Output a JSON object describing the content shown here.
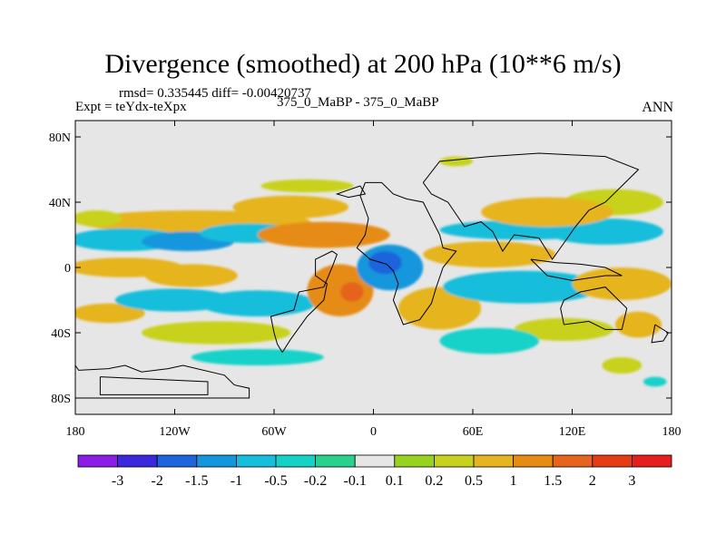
{
  "header": {
    "title": "Divergence (smoothed) at 200 hPa (10**6 m/s)",
    "stats": "rmsd= 0.335445  diff= -0.00420737",
    "expt": "Expt = teYdx-teXpx",
    "comparison": "375_0_MaBP - 375_0_MaBP",
    "period": "ANN"
  },
  "chart_data": {
    "type": "heatmap",
    "title": "Divergence (smoothed) at 200 hPa (10**6 m/s)",
    "projection": "cylindrical equidistant",
    "xlim": [
      -180,
      180
    ],
    "ylim": [
      -90,
      90
    ],
    "x_ticks": [
      {
        "value": -180,
        "label": "180"
      },
      {
        "value": -120,
        "label": "120W"
      },
      {
        "value": -60,
        "label": "60W"
      },
      {
        "value": 0,
        "label": "0"
      },
      {
        "value": 60,
        "label": "60E"
      },
      {
        "value": 120,
        "label": "120E"
      },
      {
        "value": 180,
        "label": "180"
      }
    ],
    "y_ticks": [
      {
        "value": 80,
        "label": "80N"
      },
      {
        "value": 40,
        "label": "40N"
      },
      {
        "value": 0,
        "label": "0"
      },
      {
        "value": -40,
        "label": "40S"
      },
      {
        "value": -80,
        "label": "80S"
      }
    ],
    "colorbar": {
      "labels": [
        "-3",
        "-2",
        "-1.5",
        "-1",
        "-0.5",
        "-0.2",
        "-0.1",
        "0.1",
        "0.2",
        "0.5",
        "1",
        "1.5",
        "2",
        "3"
      ],
      "colors": [
        "#8a1ee6",
        "#3c28dc",
        "#1e64dc",
        "#1496dc",
        "#14bedc",
        "#14d2c8",
        "#28d28c",
        "#e6e6e6",
        "#96d21e",
        "#c8d21e",
        "#e6b41e",
        "#e68c14",
        "#e6641e",
        "#e63c14",
        "#e61e1e"
      ]
    },
    "background_color": "#e6e6e6",
    "regions": [
      {
        "lon": -108,
        "lat": 28,
        "rlon": 70,
        "rlat": 7,
        "level": "0.5"
      },
      {
        "lon": -167,
        "lat": 30,
        "rlon": 15,
        "rlat": 5,
        "level": "0.2"
      },
      {
        "lon": -50,
        "lat": 37,
        "rlon": 35,
        "rlat": 7,
        "level": "0.5"
      },
      {
        "lon": -40,
        "lat": 50,
        "rlon": 28,
        "rlat": 4,
        "level": "0.2"
      },
      {
        "lon": -150,
        "lat": 17,
        "rlon": 34,
        "rlat": 7,
        "level": "-0.5"
      },
      {
        "lon": -112,
        "lat": 16,
        "rlon": 28,
        "rlat": 6,
        "level": "-1"
      },
      {
        "lon": -75,
        "lat": 21,
        "rlon": 30,
        "rlat": 6,
        "level": "-0.5"
      },
      {
        "lon": -30,
        "lat": 20,
        "rlon": 40,
        "rlat": 8,
        "level": "1"
      },
      {
        "lon": -150,
        "lat": 0,
        "rlon": 35,
        "rlat": 6,
        "level": "0.5"
      },
      {
        "lon": -110,
        "lat": -5,
        "rlon": 28,
        "rlat": 7,
        "level": "0.5"
      },
      {
        "lon": -160,
        "lat": -28,
        "rlon": 22,
        "rlat": 6,
        "level": "0.5"
      },
      {
        "lon": -120,
        "lat": -20,
        "rlon": 36,
        "rlat": 7,
        "level": "-0.5"
      },
      {
        "lon": -70,
        "lat": -22,
        "rlon": 35,
        "rlat": 8,
        "level": "-0.5"
      },
      {
        "lon": -95,
        "lat": -40,
        "rlon": 45,
        "rlat": 7,
        "level": "0.2"
      },
      {
        "lon": -70,
        "lat": -55,
        "rlon": 40,
        "rlat": 5,
        "level": "-0.2"
      },
      {
        "lon": -20,
        "lat": -14,
        "rlon": 20,
        "rlat": 16,
        "level": "1"
      },
      {
        "lon": -13,
        "lat": -15,
        "rlon": 7,
        "rlat": 6,
        "level": "1.5"
      },
      {
        "lon": 10,
        "lat": 0,
        "rlon": 20,
        "rlat": 14,
        "level": "-1"
      },
      {
        "lon": 7,
        "lat": 3,
        "rlon": 10,
        "rlat": 7,
        "level": "-1.5"
      },
      {
        "lon": 40,
        "lat": -25,
        "rlon": 25,
        "rlat": 13,
        "level": "0.5"
      },
      {
        "lon": 70,
        "lat": 8,
        "rlon": 40,
        "rlat": 8,
        "level": "0.5"
      },
      {
        "lon": 90,
        "lat": 23,
        "rlon": 50,
        "rlat": 6,
        "level": "-0.5"
      },
      {
        "lon": 140,
        "lat": 22,
        "rlon": 35,
        "rlat": 8,
        "level": "-0.5"
      },
      {
        "lon": 145,
        "lat": 40,
        "rlon": 30,
        "rlat": 8,
        "level": "0.2"
      },
      {
        "lon": 105,
        "lat": 34,
        "rlon": 40,
        "rlat": 9,
        "level": "0.5"
      },
      {
        "lon": 90,
        "lat": -12,
        "rlon": 48,
        "rlat": 10,
        "level": "-0.5"
      },
      {
        "lon": 150,
        "lat": -10,
        "rlon": 30,
        "rlat": 10,
        "level": "0.5"
      },
      {
        "lon": 115,
        "lat": -38,
        "rlon": 30,
        "rlat": 7,
        "level": "0.2"
      },
      {
        "lon": 160,
        "lat": -35,
        "rlon": 14,
        "rlat": 8,
        "level": "0.5"
      },
      {
        "lon": 70,
        "lat": -45,
        "rlon": 30,
        "rlat": 8,
        "level": "-0.2"
      },
      {
        "lon": 150,
        "lat": -60,
        "rlon": 12,
        "rlat": 5,
        "level": "0.2"
      },
      {
        "lon": 50,
        "lat": 65,
        "rlon": 10,
        "rlat": 3,
        "level": "0.2"
      },
      {
        "lon": 170,
        "lat": -70,
        "rlon": 7,
        "rlat": 3,
        "level": "-0.2"
      }
    ],
    "land_outlines": [
      [
        [
          -180,
          -60
        ],
        [
          -178,
          -63
        ],
        [
          -160,
          -62
        ],
        [
          -150,
          -60
        ],
        [
          -140,
          -64
        ],
        [
          -124,
          -62
        ],
        [
          -115,
          -60
        ],
        [
          -90,
          -66
        ],
        [
          -84,
          -72
        ],
        [
          -75,
          -74
        ],
        [
          -75,
          -80
        ],
        [
          -180,
          -80
        ]
      ],
      [
        [
          -165,
          -67
        ],
        [
          -100,
          -70
        ],
        [
          -100,
          -78
        ],
        [
          -165,
          -78
        ],
        [
          -165,
          -67
        ]
      ],
      [
        [
          -55,
          -52
        ],
        [
          -58,
          -47
        ],
        [
          -60,
          -40
        ],
        [
          -62,
          -30
        ],
        [
          -48,
          -26
        ],
        [
          -45,
          -15
        ],
        [
          -30,
          -12
        ],
        [
          -25,
          0
        ],
        [
          -22,
          8
        ],
        [
          -25,
          10
        ],
        [
          -35,
          5
        ],
        [
          -35,
          -5
        ],
        [
          -28,
          -10
        ],
        [
          -30,
          -20
        ],
        [
          -40,
          -30
        ],
        [
          -50,
          -44
        ],
        [
          -55,
          -52
        ]
      ],
      [
        [
          -5,
          52
        ],
        [
          -8,
          44
        ],
        [
          -3,
          30
        ],
        [
          -5,
          20
        ],
        [
          -10,
          12
        ],
        [
          -2,
          5
        ],
        [
          8,
          2
        ],
        [
          12,
          -2
        ],
        [
          15,
          -10
        ],
        [
          12,
          -20
        ],
        [
          18,
          -35
        ],
        [
          28,
          -32
        ],
        [
          35,
          -22
        ],
        [
          38,
          -12
        ],
        [
          42,
          0
        ],
        [
          50,
          10
        ],
        [
          42,
          12
        ],
        [
          40,
          20
        ],
        [
          35,
          30
        ],
        [
          30,
          40
        ],
        [
          20,
          42
        ],
        [
          12,
          45
        ],
        [
          5,
          52
        ],
        [
          -5,
          52
        ]
      ],
      [
        [
          -8,
          50
        ],
        [
          -5,
          45
        ],
        [
          -15,
          43
        ],
        [
          -22,
          45
        ],
        [
          -8,
          50
        ]
      ],
      [
        [
          30,
          52
        ],
        [
          35,
          45
        ],
        [
          45,
          40
        ],
        [
          55,
          25
        ],
        [
          65,
          28
        ],
        [
          72,
          22
        ],
        [
          78,
          10
        ],
        [
          85,
          20
        ],
        [
          100,
          18
        ],
        [
          108,
          5
        ],
        [
          115,
          15
        ],
        [
          122,
          25
        ],
        [
          130,
          35
        ],
        [
          140,
          40
        ],
        [
          150,
          50
        ],
        [
          160,
          60
        ],
        [
          140,
          68
        ],
        [
          100,
          70
        ],
        [
          70,
          68
        ],
        [
          40,
          65
        ],
        [
          30,
          52
        ]
      ],
      [
        [
          115,
          -20
        ],
        [
          125,
          -15
        ],
        [
          140,
          -12
        ],
        [
          153,
          -25
        ],
        [
          150,
          -38
        ],
        [
          140,
          -38
        ],
        [
          130,
          -33
        ],
        [
          115,
          -35
        ],
        [
          113,
          -25
        ],
        [
          115,
          -20
        ]
      ],
      [
        [
          95,
          5
        ],
        [
          105,
          -5
        ],
        [
          120,
          -8
        ],
        [
          140,
          -5
        ],
        [
          150,
          -5
        ],
        [
          140,
          0
        ],
        [
          125,
          2
        ],
        [
          110,
          3
        ],
        [
          95,
          5
        ]
      ],
      [
        [
          170,
          -35
        ],
        [
          178,
          -40
        ],
        [
          175,
          -45
        ],
        [
          168,
          -46
        ],
        [
          170,
          -35
        ]
      ]
    ]
  }
}
